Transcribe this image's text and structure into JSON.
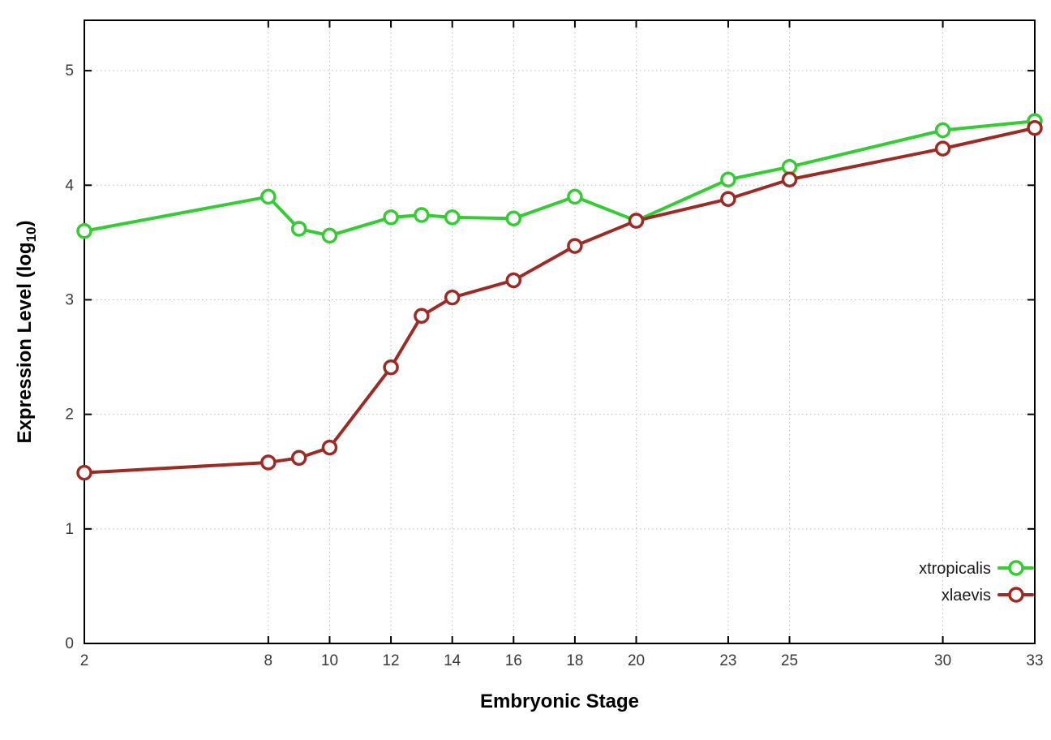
{
  "chart_data": {
    "type": "line",
    "title": "",
    "xlabel": "Embryonic Stage",
    "ylabel": "Expression Level (log10)",
    "ylabel_main": "Expression Level (log",
    "ylabel_sub": "10",
    "ylabel_end": ")",
    "x": [
      2,
      8,
      9,
      10,
      12,
      13,
      14,
      16,
      18,
      20,
      23,
      25,
      30,
      33
    ],
    "x_tick_labels": [
      "2",
      "8",
      "10",
      "12",
      "14",
      "16",
      "18",
      "20",
      "23",
      "25",
      "30",
      "33"
    ],
    "x_tick_values": [
      2,
      8,
      10,
      12,
      14,
      16,
      18,
      20,
      23,
      25,
      30,
      33
    ],
    "y_tick_labels": [
      "0",
      "1",
      "2",
      "3",
      "4",
      "5"
    ],
    "y_tick_values": [
      0,
      1,
      2,
      3,
      4,
      5
    ],
    "xlim": [
      2,
      33
    ],
    "ylim": [
      0,
      5.44
    ],
    "grid": true,
    "legend_position": "bottom-right",
    "colors": {
      "grid": "#bdbdbd",
      "border": "#000000",
      "tick_label": "#3a3a3a",
      "axis_label": "#000000",
      "legend_text": "#1a1a1a",
      "marker_fill": "#ffffff"
    },
    "series": [
      {
        "name": "xtropicalis",
        "color": "#32cd32",
        "values": [
          3.6,
          3.9,
          3.62,
          3.56,
          3.72,
          3.74,
          3.72,
          3.71,
          3.9,
          3.69,
          4.05,
          4.16,
          4.48,
          4.56
        ]
      },
      {
        "name": "xlaevis",
        "color": "#9e2a23",
        "values": [
          1.49,
          1.58,
          1.62,
          1.71,
          2.41,
          2.86,
          3.02,
          3.17,
          3.47,
          3.69,
          3.88,
          4.05,
          4.32,
          4.5
        ]
      }
    ]
  }
}
